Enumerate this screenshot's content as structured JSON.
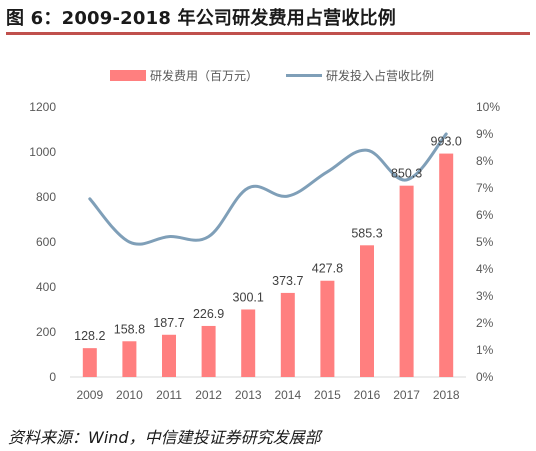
{
  "header": {
    "title": "图 6：2009-2018 年公司研发费用占营收比例"
  },
  "footer": {
    "source": "资料来源：Wind，中信建投证券研究发展部"
  },
  "colors": {
    "bar": "#ff7f7f",
    "line": "#7f9fb8",
    "accent": "#c0504d"
  },
  "chart_data": {
    "type": "bar",
    "categories": [
      "2009",
      "2010",
      "2011",
      "2012",
      "2013",
      "2014",
      "2015",
      "2016",
      "2017",
      "2018"
    ],
    "series": [
      {
        "name": "研发费用（百万元）",
        "type": "bar",
        "axis": "left",
        "values": [
          128.2,
          158.8,
          187.7,
          226.9,
          300.1,
          373.7,
          427.8,
          585.3,
          850.3,
          993.0
        ],
        "labels": [
          "128.2",
          "158.8",
          "187.7",
          "226.9",
          "300.1",
          "373.7",
          "427.8",
          "585.3",
          "850.3",
          "993.0"
        ]
      },
      {
        "name": "研发投入占营收比例",
        "type": "line",
        "axis": "right",
        "values": [
          6.6,
          5.0,
          5.2,
          5.2,
          7.0,
          6.7,
          7.6,
          8.4,
          7.3,
          9.0
        ]
      }
    ],
    "y_left": {
      "min": 0,
      "max": 1200,
      "ticks": [
        "0",
        "200",
        "400",
        "600",
        "800",
        "1000",
        "1200"
      ]
    },
    "y_right": {
      "min": 0,
      "max": 10,
      "unit": "%",
      "ticks": [
        "0%",
        "1%",
        "2%",
        "3%",
        "4%",
        "5%",
        "6%",
        "7%",
        "8%",
        "9%",
        "10%"
      ]
    },
    "legend": {
      "position": "top"
    },
    "grid": false
  }
}
